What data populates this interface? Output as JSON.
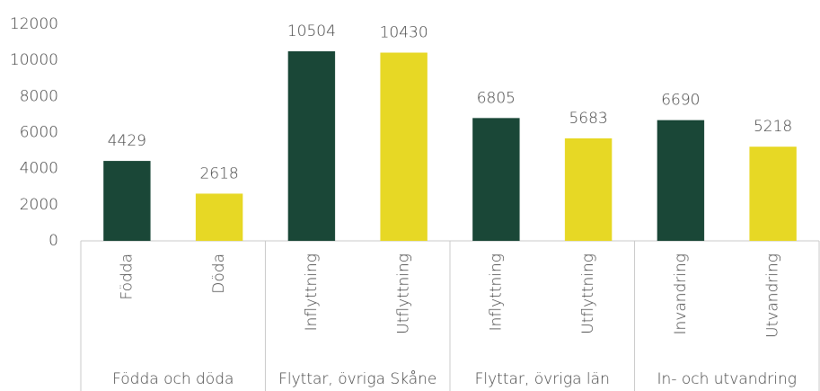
{
  "chart_data": {
    "type": "bar",
    "groups": [
      {
        "name": "Födda och döda",
        "categories": [
          "Födda",
          "Döda"
        ],
        "values": [
          4429,
          2618
        ]
      },
      {
        "name": "Flyttar, övriga Skåne",
        "categories": [
          "Inflyttning",
          "Utflyttning"
        ],
        "values": [
          10504,
          10430
        ]
      },
      {
        "name": "Flyttar, övriga län",
        "categories": [
          "Inflyttning",
          "Utflyttning"
        ],
        "values": [
          6805,
          5683
        ]
      },
      {
        "name": "In- och utvandring",
        "categories": [
          "Invandring",
          "Utvandring"
        ],
        "values": [
          6690,
          5218
        ]
      }
    ],
    "colors": [
      "#1a4737",
      "#e7d825"
    ],
    "ylim": [
      0,
      12000
    ],
    "yticks": [
      0,
      2000,
      4000,
      6000,
      8000,
      10000,
      12000
    ],
    "grid": false
  }
}
